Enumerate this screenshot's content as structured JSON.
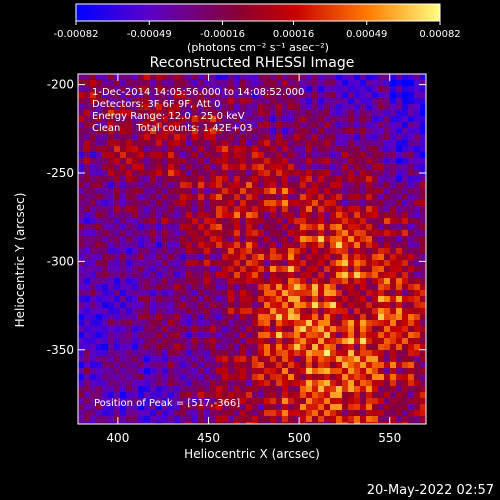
{
  "chart_data": {
    "type": "heatmap",
    "title": "Reconstructed RHESSI Image",
    "xlabel": "Heliocentric X (arcsec)",
    "ylabel": "Heliocentric Y (arcsec)",
    "xlim": [
      378,
      570
    ],
    "ylim": [
      -392,
      -194
    ],
    "x_ticks": [
      400,
      450,
      500,
      550
    ],
    "y_ticks": [
      -200,
      -250,
      -300,
      -350
    ],
    "x_tick_labels": [
      "400",
      "450",
      "500",
      "550"
    ],
    "y_tick_labels": [
      "-200",
      "-250",
      "-300",
      "-350"
    ],
    "colorbar": {
      "range": [
        -0.00082,
        0.00082
      ],
      "ticks": [
        -0.00082,
        -0.00049,
        -0.00016,
        0.00016,
        0.00049,
        0.00082
      ],
      "tick_labels": [
        "-0.00082",
        "-0.00049",
        "-0.00016",
        "0.00016",
        "0.00049",
        "0.00082"
      ],
      "unit_label": "(photons cm⁻² s⁻¹ asec⁻²)",
      "colors": [
        "#0000ff",
        "#5b00c8",
        "#8a0032",
        "#c80000",
        "#ff7a00",
        "#ffff80"
      ]
    },
    "annotations": [
      "1-Dec-2014 14:05:56.000 to 14:08:52.000",
      "Detectors: 3F 6F 9F, Att 0",
      "Energy Range: 12.0 - 25.0 keV",
      "Clean     Total counts: 1.42E+03"
    ],
    "peak_label": "Position of Peak = [517,-366]",
    "peak": {
      "x": 517,
      "y": -366
    },
    "grid": false
  },
  "timestamp": "20-May-2022 02:57"
}
